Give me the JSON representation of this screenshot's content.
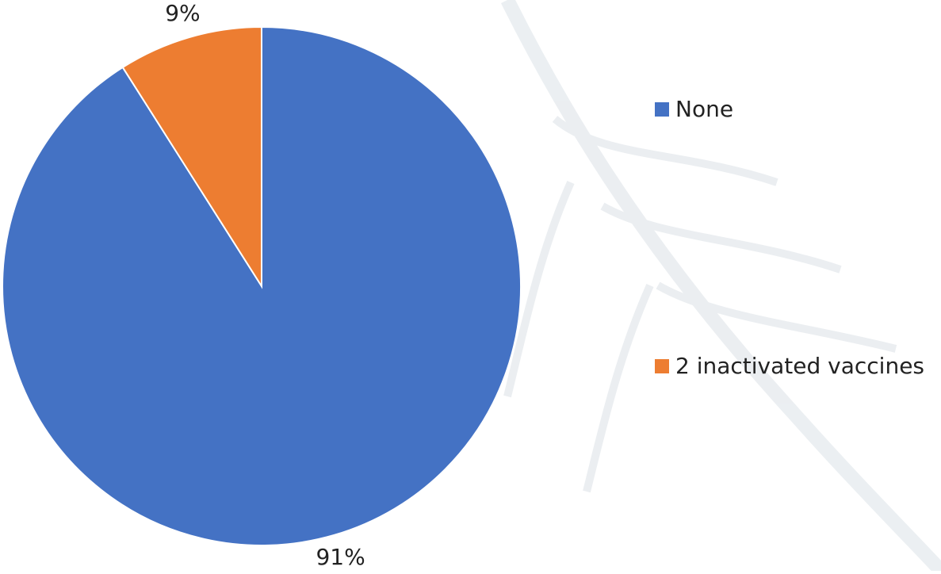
{
  "chart_data": {
    "type": "pie",
    "categories": [
      "None",
      "2 inactivated vaccines"
    ],
    "values": [
      91,
      9
    ],
    "value_labels": [
      "91%",
      "9%"
    ],
    "colors": [
      "#4472c4",
      "#ed7d31"
    ],
    "legend": "right"
  }
}
